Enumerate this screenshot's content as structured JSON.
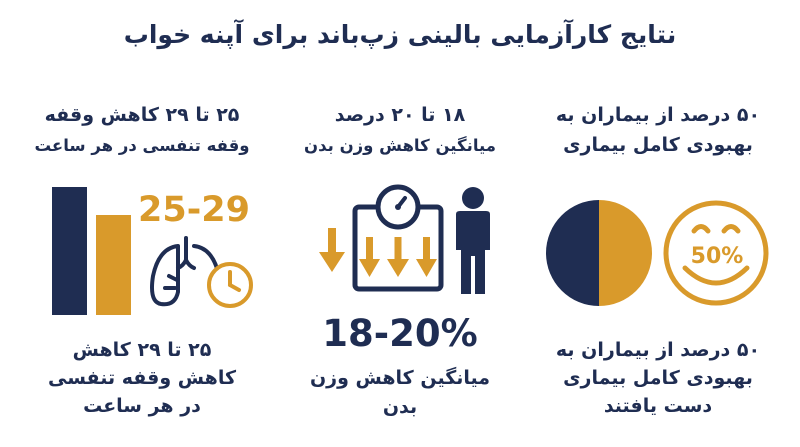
{
  "title": "نتایج کارآزمایی بالینی زپ‌باند برای آپنه خواب",
  "colors": {
    "navy": "#1f2d52",
    "orange": "#d99a2b"
  },
  "right_panel": {
    "heading_line1": "۵۰ درصد از بیماران به",
    "heading_line2": "بهبودی کامل بیماری",
    "badge_text": "50%",
    "pie_split_fraction": 0.5,
    "footer_line1": "۵۰ درصد از بیماران به",
    "footer_line2": "بهبودی کامل بیماری",
    "footer_line3": "دست یافتند",
    "icons": [
      "half-pie-icon",
      "smiley-face-icon"
    ]
  },
  "middle_panel": {
    "heading_line1": "۱۸ تا ۲۰ درصد",
    "heading_line2": "میانگین کاهش وزن بدن",
    "stat_text": "18-20%",
    "footer_line1": "میانگین کاهش وزن",
    "footer_line2": "بدن",
    "icons": [
      "down-arrow-icon",
      "scale-icon",
      "person-icon"
    ]
  },
  "left_panel": {
    "heading_line1": "۲۵ تا ۲۹ کاهش وقفه",
    "heading_line2": "وقفه تنفسی در هر ساعت",
    "stat_text": "25-29",
    "footer_line1": "۲۵ تا ۲۹ کاهش",
    "footer_line2": "کاهش وقفه تنفسی",
    "footer_line3": "در هر ساعت",
    "icons": [
      "bar-chart-icon",
      "lungs-icon",
      "clock-icon"
    ]
  }
}
